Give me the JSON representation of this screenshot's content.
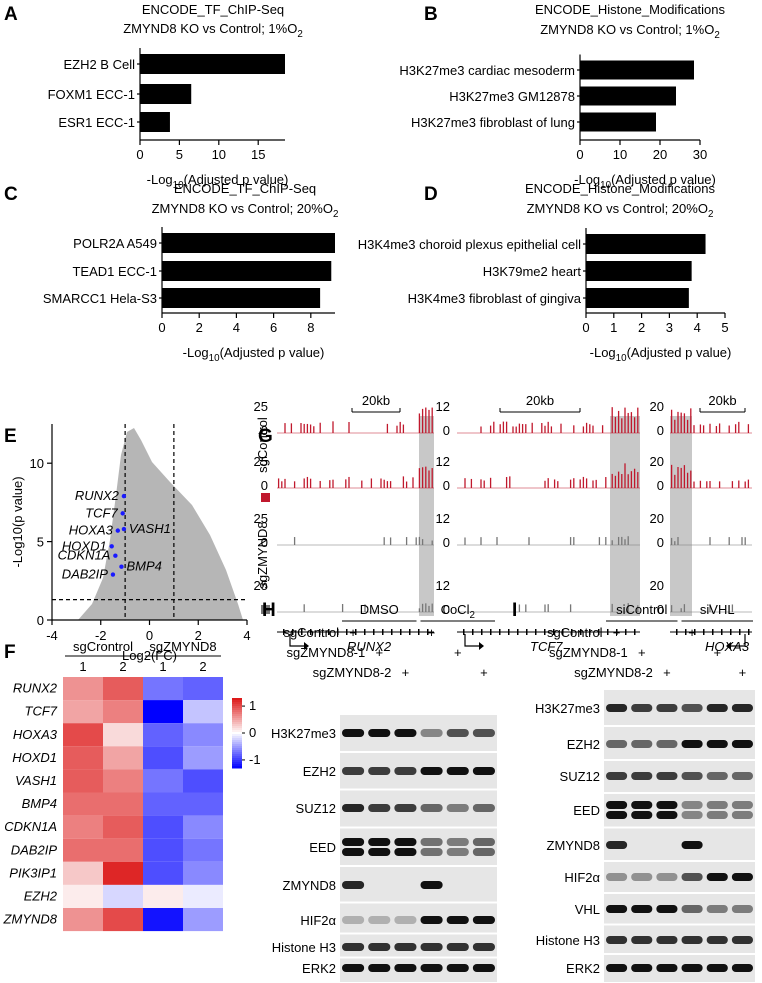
{
  "chart_data": [
    {
      "type": "bar",
      "label": "A",
      "title": "ENCODE_TF_ChIP-Seq",
      "subtitle": [
        "ZMYND8 KO vs Control; 1%O",
        "2"
      ],
      "categories": [
        "EZH2 B Cell",
        "FOXM1 ECC-1",
        "ESR1 ECC-1"
      ],
      "values": [
        18.4,
        6.5,
        3.8
      ],
      "color": "#000000",
      "xlabel": [
        "-Log",
        "10",
        "(Adjusted p value)"
      ],
      "xlim": [
        0,
        18.4
      ],
      "xticks": [
        0,
        5,
        10,
        15
      ]
    },
    {
      "type": "bar",
      "label": "B",
      "title": "ENCODE_Histone_Modifications",
      "subtitle": [
        "ZMYND8 KO vs Control; 1%O",
        "2"
      ],
      "categories": [
        "H3K27me3 cardiac mesoderm",
        "H3K27me3 GM12878",
        "H3K27me3 fibroblast of lung"
      ],
      "values": [
        28.5,
        24,
        19
      ],
      "color": "#000000",
      "xlabel": [
        "-Log",
        "10",
        "(Adjusted p value)"
      ],
      "xlim": [
        0,
        30
      ],
      "xticks": [
        0,
        10,
        20,
        30
      ]
    },
    {
      "type": "bar",
      "label": "C",
      "title": "ENCODE_TF_ChIP-Seq",
      "subtitle": [
        "ZMYND8 KO vs Control; 20%O",
        "2"
      ],
      "categories": [
        "POLR2A A549",
        "TEAD1 ECC-1",
        "SMARCC1 Hela-S3"
      ],
      "values": [
        9.3,
        9.1,
        8.5
      ],
      "color": "#000000",
      "xlabel": [
        "-Log",
        "10",
        "(Adjusted p value)"
      ],
      "xlim": [
        0,
        9.3
      ],
      "xticks": [
        0,
        2,
        4,
        6,
        8
      ]
    },
    {
      "type": "bar",
      "label": "D",
      "title": "ENCODE_Histone_Modifications",
      "subtitle": [
        "ZMYND8 KO vs Control; 20%O",
        "2"
      ],
      "categories": [
        "H3K4me3 choroid plexus epithelial cell",
        "H3K79me2 heart",
        "H3K4me3 fibroblast of gingiva"
      ],
      "values": [
        4.3,
        3.8,
        3.7
      ],
      "color": "#000000",
      "xlabel": [
        "-Log",
        "10",
        "(Adjusted p value)"
      ],
      "xlim": [
        0,
        5
      ],
      "xticks": [
        0,
        1,
        2,
        3,
        4,
        5
      ]
    },
    {
      "type": "scatter",
      "label": "E",
      "xlabel": "Log2(FC)",
      "ylabel": "-Log10(p value)",
      "xlim": [
        -4,
        4
      ],
      "xticks": [
        -4,
        -2,
        0,
        2,
        4
      ],
      "ylim": [
        0,
        12.5
      ],
      "yticks": [
        0,
        5,
        10
      ],
      "thresholds": {
        "x": [
          -1,
          1
        ],
        "y": 1.3
      },
      "points": {
        "names": [
          "RUNX2",
          "TCF7",
          "HOXA3",
          "VASH1",
          "HOXD1",
          "CDKN1A",
          "BMP4",
          "DAB2IP"
        ],
        "x": [
          -1.05,
          -1.1,
          -1.3,
          -1.05,
          -1.55,
          -1.4,
          -1.15,
          -1.5
        ],
        "y": [
          7.9,
          6.8,
          5.7,
          5.8,
          4.7,
          4.1,
          3.4,
          2.9
        ],
        "color": "#1a1aff"
      }
    },
    {
      "type": "heatmap",
      "label": "F",
      "groups": [
        "sgCrontrol",
        "sgZMYND8"
      ],
      "columns": [
        "1",
        "2",
        "1",
        "2"
      ],
      "rows": [
        "RUNX2",
        "TCF7",
        "HOXA3",
        "HOXD1",
        "VASH1",
        "BMP4",
        "CDKN1A",
        "DAB2IP",
        "PIK3IP1",
        "EZH2",
        "ZMYND8"
      ],
      "values": [
        [
          0.6,
          0.9,
          -0.7,
          -0.8
        ],
        [
          0.5,
          0.7,
          -1.3,
          -0.3
        ],
        [
          1.0,
          0.2,
          -0.8,
          -0.6
        ],
        [
          0.9,
          0.5,
          -0.9,
          -0.5
        ],
        [
          0.9,
          0.7,
          -0.7,
          -0.9
        ],
        [
          0.8,
          0.8,
          -0.8,
          -0.8
        ],
        [
          0.7,
          0.9,
          -0.9,
          -0.6
        ],
        [
          0.8,
          0.8,
          -0.9,
          -0.7
        ],
        [
          0.3,
          1.2,
          -0.9,
          -0.6
        ],
        [
          0.1,
          -0.2,
          0.1,
          -0.1
        ],
        [
          0.6,
          1.0,
          -1.2,
          -0.5
        ]
      ],
      "clim": [
        -1.3,
        1.3
      ],
      "cticks": [
        1,
        0,
        -1
      ]
    }
  ],
  "tracks": {
    "label": "G",
    "scale": "20kb",
    "samples": [
      "sgControl",
      "sgZMYND8"
    ],
    "loci": [
      {
        "gene": "RUNX2",
        "ymax": 25,
        "ymin": 0
      },
      {
        "gene": "TCF7",
        "ymax": 12,
        "ymin": 0
      },
      {
        "gene": "HOXA3",
        "ymax": 20,
        "ymin": 0
      }
    ]
  },
  "blots": [
    {
      "label": "H",
      "mark": "+",
      "treatments": [
        {
          "name": [
            "DMSO"
          ],
          "lanes": [
            0,
            1,
            2
          ]
        },
        {
          "name": [
            "CoCl",
            "2"
          ],
          "lanes": [
            3,
            4,
            5
          ]
        }
      ],
      "conditions": [
        {
          "name": "sgControl",
          "lanes": [
            0,
            3
          ]
        },
        {
          "name": "sgZMYND8-1",
          "lanes": [
            1,
            4
          ]
        },
        {
          "name": "sgZMYND8-2",
          "lanes": [
            2,
            5
          ]
        }
      ],
      "proteins": [
        "H3K27me3",
        "EZH2",
        "SUZ12",
        "EED",
        "ZMYND8",
        "HIF2α",
        "Histone H3",
        "ERK2"
      ]
    },
    {
      "label": "I",
      "mark": "+",
      "treatments": [
        {
          "name": [
            "siControl"
          ],
          "lanes": [
            0,
            1,
            2
          ]
        },
        {
          "name": [
            "siVHL"
          ],
          "lanes": [
            3,
            4,
            5
          ]
        }
      ],
      "conditions": [
        {
          "name": "sgControl",
          "lanes": [
            0,
            3
          ]
        },
        {
          "name": "sgZMYND8-1",
          "lanes": [
            1,
            4
          ]
        },
        {
          "name": "sgZMYND8-2",
          "lanes": [
            2,
            5
          ]
        }
      ],
      "proteins": [
        "H3K27me3",
        "EZH2",
        "SUZ12",
        "EED",
        "ZMYND8",
        "HIF2α",
        "VHL",
        "Histone H3",
        "ERK2"
      ]
    }
  ]
}
